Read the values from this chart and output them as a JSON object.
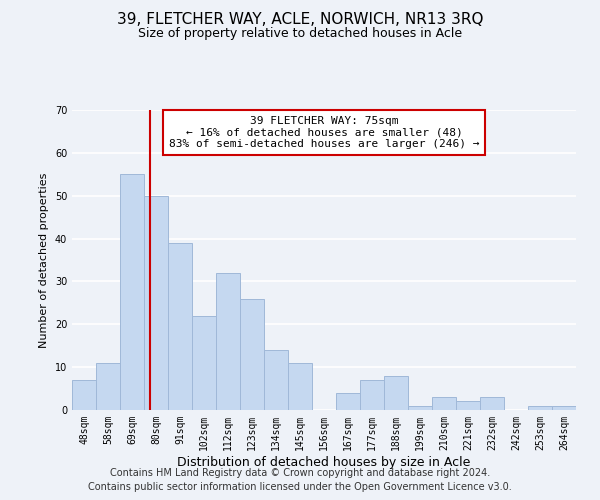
{
  "title": "39, FLETCHER WAY, ACLE, NORWICH, NR13 3RQ",
  "subtitle": "Size of property relative to detached houses in Acle",
  "xlabel": "Distribution of detached houses by size in Acle",
  "ylabel": "Number of detached properties",
  "bar_labels": [
    "48sqm",
    "58sqm",
    "69sqm",
    "80sqm",
    "91sqm",
    "102sqm",
    "112sqm",
    "123sqm",
    "134sqm",
    "145sqm",
    "156sqm",
    "167sqm",
    "177sqm",
    "188sqm",
    "199sqm",
    "210sqm",
    "221sqm",
    "232sqm",
    "242sqm",
    "253sqm",
    "264sqm"
  ],
  "bar_values": [
    7,
    11,
    55,
    50,
    39,
    22,
    32,
    26,
    14,
    11,
    0,
    4,
    7,
    8,
    1,
    3,
    2,
    3,
    0,
    1,
    1
  ],
  "bar_color": "#c5d8f0",
  "bar_edge_color": "#a0b8d8",
  "ylim": [
    0,
    70
  ],
  "yticks": [
    0,
    10,
    20,
    30,
    40,
    50,
    60,
    70
  ],
  "vline_x": 2.75,
  "vline_color": "#cc0000",
  "annotation_text": "39 FLETCHER WAY: 75sqm\n← 16% of detached houses are smaller (48)\n83% of semi-detached houses are larger (246) →",
  "footer_line1": "Contains HM Land Registry data © Crown copyright and database right 2024.",
  "footer_line2": "Contains public sector information licensed under the Open Government Licence v3.0.",
  "background_color": "#eef2f8",
  "plot_bg_color": "#eef2f8",
  "grid_color": "#ffffff",
  "title_fontsize": 11,
  "subtitle_fontsize": 9,
  "xlabel_fontsize": 9,
  "ylabel_fontsize": 8,
  "tick_fontsize": 7,
  "footer_fontsize": 7,
  "annotation_fontsize": 8
}
